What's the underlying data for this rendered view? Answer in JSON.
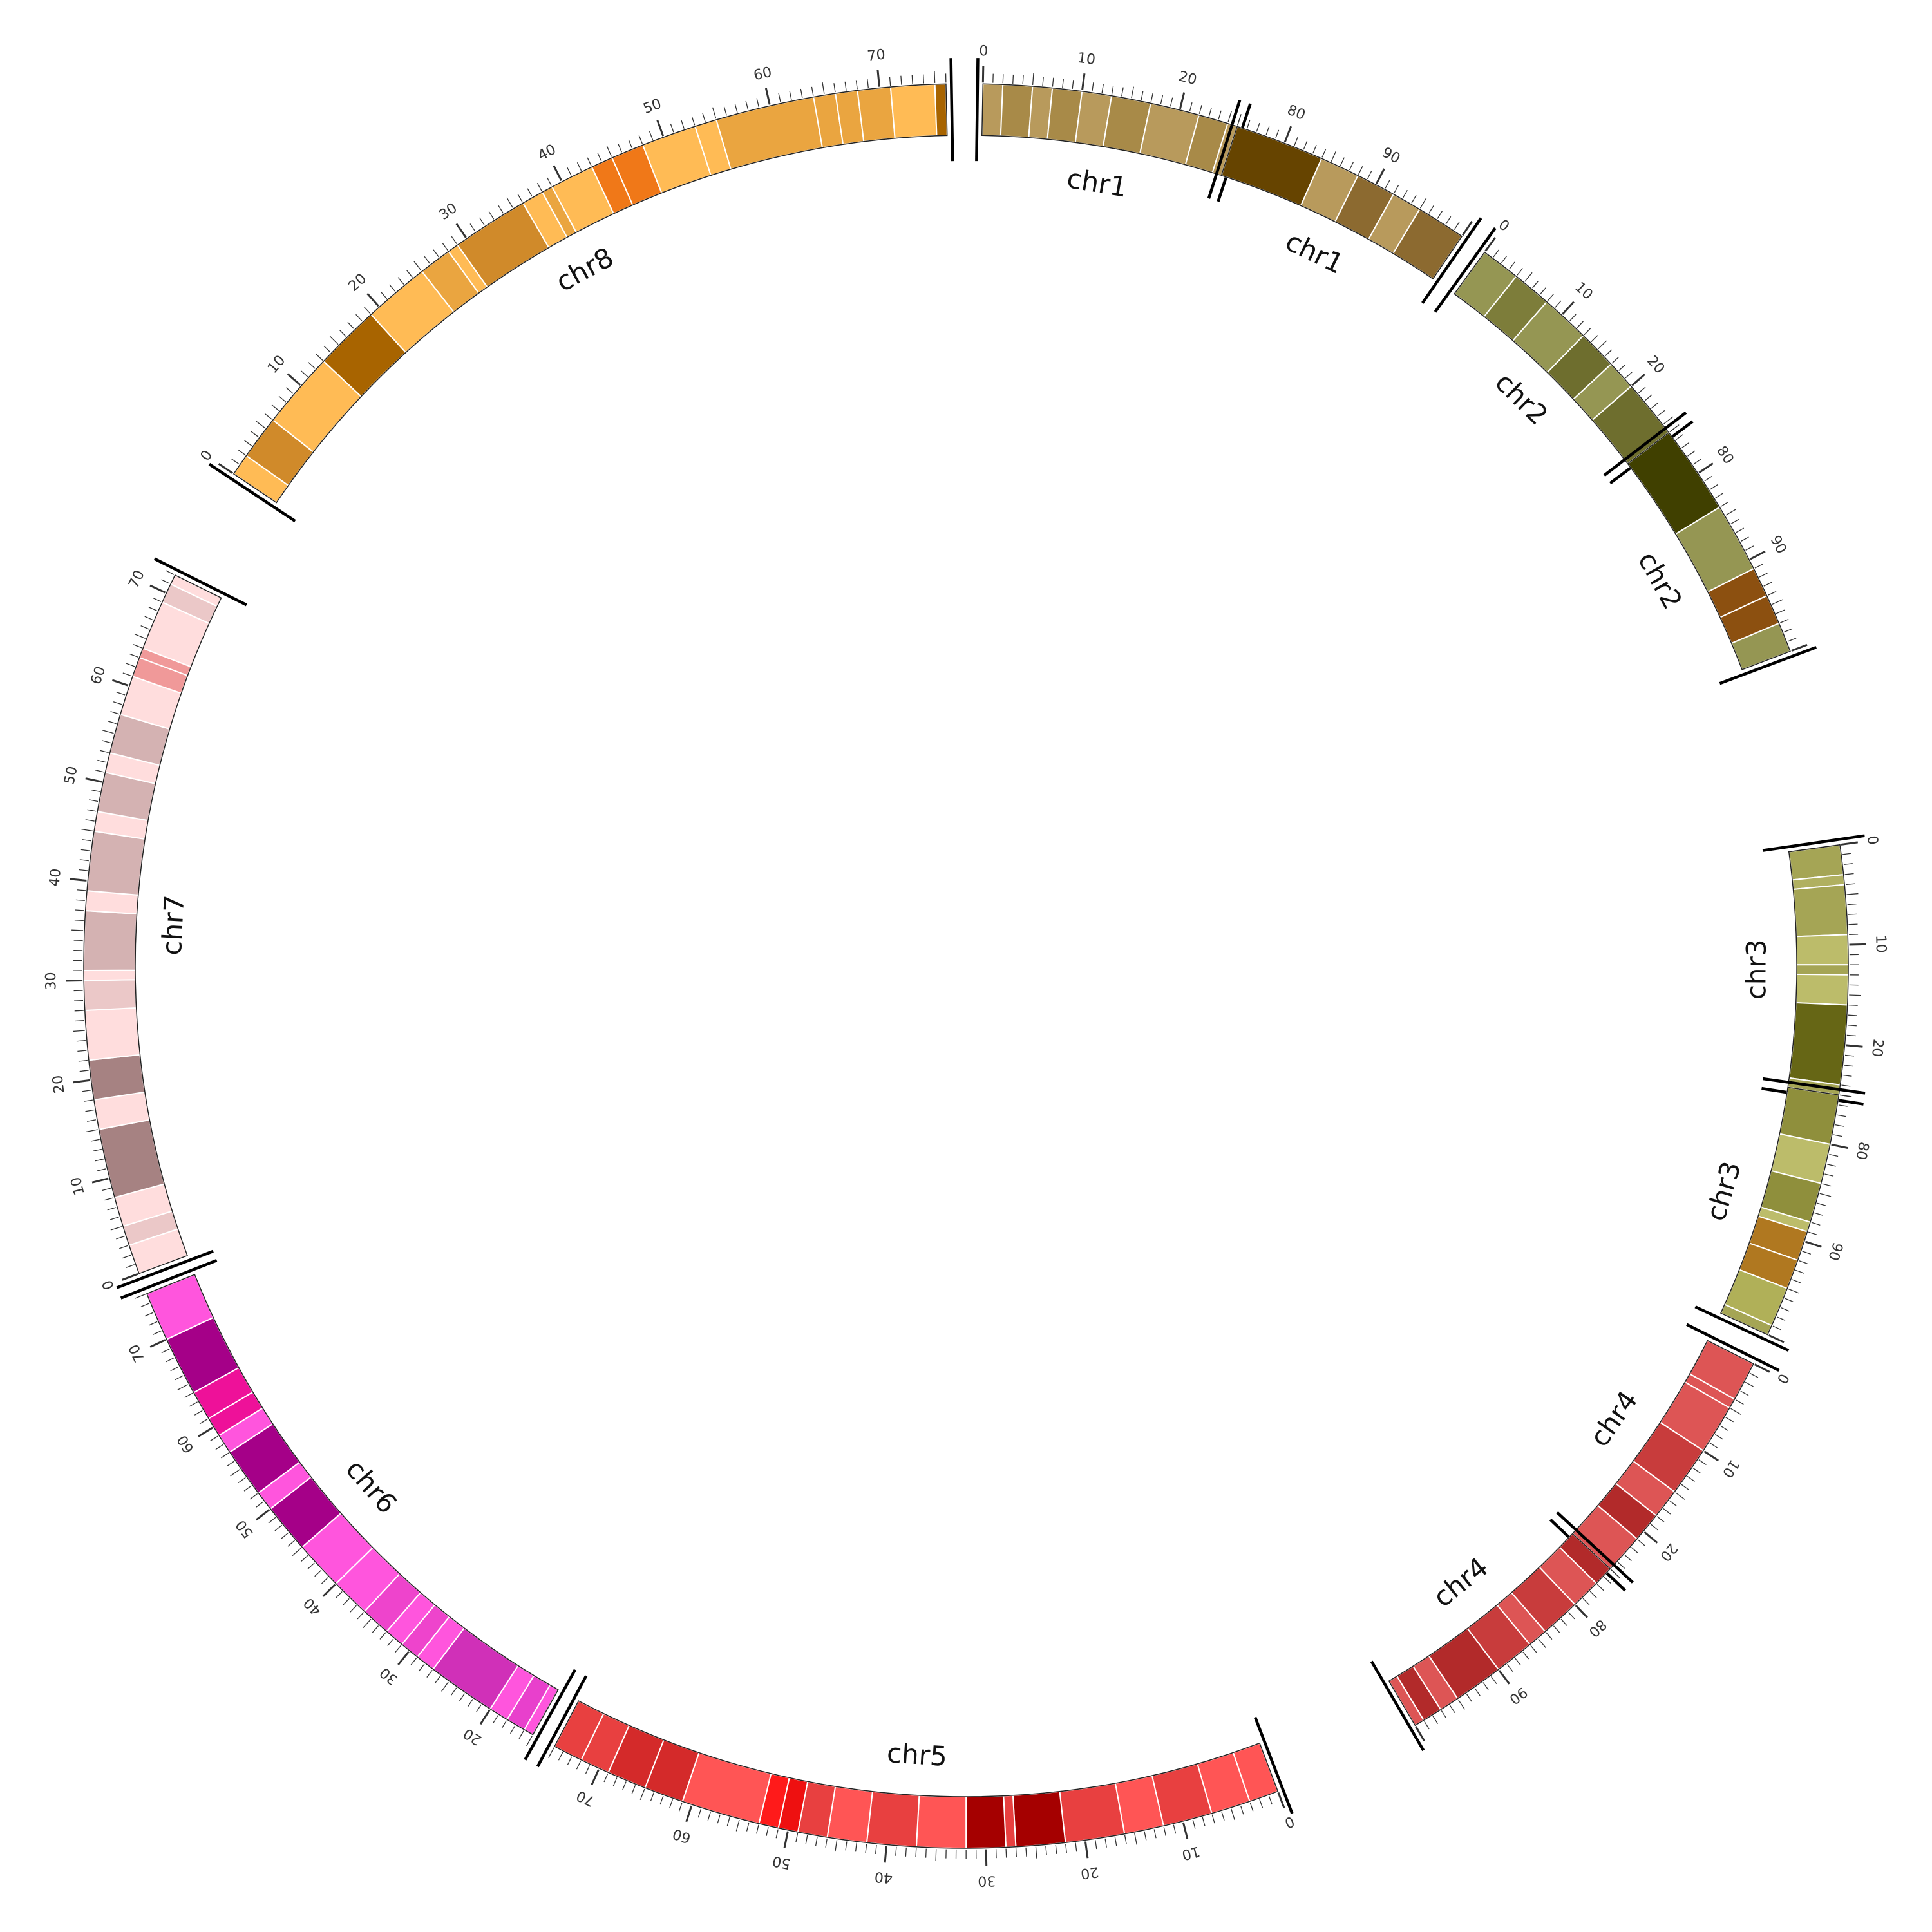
{
  "diagram": {
    "type": "circos-ideogram",
    "segments": [
      {
        "label": "chr1",
        "start": 0,
        "end": 26,
        "ticks": [
          0,
          10,
          20
        ],
        "bands": [
          [
            0,
            2,
            "#b89a5c"
          ],
          [
            2,
            5,
            "#a88a48"
          ],
          [
            5,
            7,
            "#b89a5c"
          ],
          [
            7,
            10,
            "#a88a48"
          ],
          [
            10,
            13,
            "#b89a5c"
          ],
          [
            13,
            17,
            "#a88a48"
          ],
          [
            17,
            22,
            "#b89a5c"
          ],
          [
            22,
            25,
            "#a88a48"
          ],
          [
            25,
            26,
            "#b89a5c"
          ]
        ]
      },
      {
        "label": "chr1",
        "start": 75,
        "end": 100,
        "ticks": [
          80,
          90
        ],
        "bands": [
          [
            75,
            84,
            "#664400"
          ],
          [
            84,
            88,
            "#b89a5c"
          ],
          [
            88,
            92,
            "#8c6a30"
          ],
          [
            92,
            95,
            "#b89a5c"
          ],
          [
            95,
            100,
            "#8c6a30"
          ]
        ]
      },
      {
        "label": "chr2",
        "start": 0,
        "end": 26,
        "ticks": [
          0,
          10,
          20
        ],
        "bands": [
          [
            0,
            4,
            "#959653"
          ],
          [
            4,
            8,
            "#7d7d3a"
          ],
          [
            8,
            13,
            "#959653"
          ],
          [
            13,
            17,
            "#6e6e2e"
          ],
          [
            17,
            20,
            "#959653"
          ],
          [
            20,
            26,
            "#6e6e2e"
          ]
        ]
      },
      {
        "label": "chr2",
        "start": 75,
        "end": 100,
        "ticks": [
          80,
          90
        ],
        "bands": [
          [
            75,
            84,
            "#404000"
          ],
          [
            84,
            91,
            "#959653"
          ],
          [
            91,
            94,
            "#8c5010"
          ],
          [
            94,
            97,
            "#8c5010"
          ],
          [
            97,
            100,
            "#959653"
          ]
        ]
      },
      {
        "label": "chr3",
        "start": 0,
        "end": 25,
        "ticks": [
          0,
          10,
          20
        ],
        "bands": [
          [
            0,
            3,
            "#a5a555"
          ],
          [
            3,
            4,
            "#b0b060"
          ],
          [
            4,
            9,
            "#a5a555"
          ],
          [
            9,
            12,
            "#bcbc6a"
          ],
          [
            12,
            13,
            "#a5a555"
          ],
          [
            13,
            16,
            "#bcbc6a"
          ],
          [
            16,
            24,
            "#666615"
          ],
          [
            24,
            25,
            "#a5a555"
          ]
        ]
      },
      {
        "label": "chr3",
        "start": 75,
        "end": 100,
        "ticks": [
          80,
          90
        ],
        "bands": [
          [
            75,
            80,
            "#8f8f3c"
          ],
          [
            80,
            84,
            "#bcbc6a"
          ],
          [
            84,
            88,
            "#8f8f3c"
          ],
          [
            88,
            89,
            "#bcbc6a"
          ],
          [
            89,
            92,
            "#b07820"
          ],
          [
            92,
            95,
            "#b07820"
          ],
          [
            95,
            99,
            "#b0b058"
          ],
          [
            99,
            100,
            "#a5a555"
          ]
        ]
      },
      {
        "label": "chr4",
        "start": 0,
        "end": 25,
        "ticks": [
          0,
          10,
          20
        ],
        "bands": [
          [
            0,
            4,
            "#dd5555"
          ],
          [
            4,
            5,
            "#dd5555"
          ],
          [
            5,
            10,
            "#dd5555"
          ],
          [
            10,
            15,
            "#c83c3c"
          ],
          [
            15,
            18,
            "#dd5555"
          ],
          [
            18,
            21,
            "#b22a2a"
          ],
          [
            21,
            25,
            "#dd5555"
          ]
        ]
      },
      {
        "label": "chr4",
        "start": 75,
        "end": 100,
        "ticks": [
          80,
          90
        ],
        "bands": [
          [
            75,
            77,
            "#b22a2a"
          ],
          [
            77,
            80,
            "#dd5555"
          ],
          [
            80,
            84,
            "#c83c3c"
          ],
          [
            84,
            86,
            "#dd5555"
          ],
          [
            86,
            90,
            "#c83c3c"
          ],
          [
            90,
            95,
            "#b22a2a"
          ],
          [
            95,
            97,
            "#dd5555"
          ],
          [
            97,
            99,
            "#b22a2a"
          ],
          [
            99,
            100,
            "#dd5555"
          ]
        ]
      },
      {
        "label": "chr5",
        "start": 0,
        "end": 75,
        "ticks": [
          0,
          10,
          20,
          30,
          40,
          50,
          60,
          70
        ],
        "bands": [
          [
            0,
            3,
            "#ff5555"
          ],
          [
            3,
            7,
            "#ff5555"
          ],
          [
            7,
            12,
            "#e84040"
          ],
          [
            12,
            16,
            "#ff5555"
          ],
          [
            16,
            22,
            "#e84040"
          ],
          [
            22,
            27,
            "#a50000"
          ],
          [
            27,
            28,
            "#e84040"
          ],
          [
            28,
            32,
            "#a50000"
          ],
          [
            32,
            37,
            "#ff5555"
          ],
          [
            37,
            42,
            "#e84040"
          ],
          [
            42,
            46,
            "#ff5555"
          ],
          [
            46,
            49,
            "#e84040"
          ],
          [
            49,
            51,
            "#ee1010"
          ],
          [
            51,
            53,
            "#ff1a1a"
          ],
          [
            53,
            61,
            "#ff5555"
          ],
          [
            61,
            65,
            "#d42a2a"
          ],
          [
            65,
            69,
            "#d42a2a"
          ],
          [
            69,
            72,
            "#e84040"
          ],
          [
            72,
            75,
            "#e84040"
          ]
        ]
      },
      {
        "label": "chr6",
        "start": 15,
        "end": 75,
        "ticks": [
          20,
          30,
          40,
          50,
          60,
          70
        ],
        "bands": [
          [
            15,
            16,
            "#ff55dd"
          ],
          [
            16,
            18,
            "#e840cc"
          ],
          [
            18,
            20,
            "#ff55dd"
          ],
          [
            20,
            27,
            "#d030b8"
          ],
          [
            27,
            29,
            "#ff55dd"
          ],
          [
            29,
            31,
            "#ee44cc"
          ],
          [
            31,
            33,
            "#ff55dd"
          ],
          [
            33,
            36,
            "#ee44cc"
          ],
          [
            36,
            40,
            "#ff55dd"
          ],
          [
            40,
            45,
            "#ff55dd"
          ],
          [
            45,
            50,
            "#a50088"
          ],
          [
            50,
            52,
            "#ff55dd"
          ],
          [
            52,
            57,
            "#a50088"
          ],
          [
            57,
            59,
            "#ff55dd"
          ],
          [
            59,
            61,
            "#ee1199"
          ],
          [
            61,
            64,
            "#ee1199"
          ],
          [
            64,
            70,
            "#a50088"
          ],
          [
            70,
            75,
            "#ff55dd"
          ]
        ]
      },
      {
        "label": "chr7",
        "start": 0,
        "end": 72,
        "ticks": [
          0,
          10,
          20,
          30,
          40,
          50,
          60,
          70
        ],
        "bands": [
          [
            0,
            3,
            "#ffdddd"
          ],
          [
            3,
            5,
            "#ebc8c8"
          ],
          [
            5,
            8,
            "#ffdddd"
          ],
          [
            8,
            15,
            "#a68282"
          ],
          [
            15,
            18,
            "#ffdddd"
          ],
          [
            18,
            22,
            "#a68282"
          ],
          [
            22,
            27,
            "#ffdddd"
          ],
          [
            27,
            30,
            "#ebc8c8"
          ],
          [
            30,
            31,
            "#ffdddd"
          ],
          [
            31,
            37,
            "#d4b2b2"
          ],
          [
            37,
            39,
            "#ffdddd"
          ],
          [
            39,
            45,
            "#d4b2b2"
          ],
          [
            45,
            47,
            "#ffdddd"
          ],
          [
            47,
            51,
            "#d4b2b2"
          ],
          [
            51,
            53,
            "#ffdddd"
          ],
          [
            53,
            57,
            "#d4b2b2"
          ],
          [
            57,
            61,
            "#ffdddd"
          ],
          [
            61,
            63,
            "#f09999"
          ],
          [
            63,
            64,
            "#f09999"
          ],
          [
            64,
            69,
            "#ffdddd"
          ],
          [
            69,
            71,
            "#ebc8c8"
          ],
          [
            71,
            72,
            "#ffdddd"
          ]
        ]
      },
      {
        "label": "chr8",
        "start": 0,
        "end": 76,
        "ticks": [
          0,
          10,
          20,
          30,
          40,
          50,
          60,
          70
        ],
        "bands": [
          [
            0,
            2,
            "#ffbb55"
          ],
          [
            2,
            6,
            "#d08a2a"
          ],
          [
            6,
            13,
            "#ffbb55"
          ],
          [
            13,
            19,
            "#a86400"
          ],
          [
            19,
            25,
            "#ffbb55"
          ],
          [
            25,
            28,
            "#eaa540"
          ],
          [
            28,
            29,
            "#ffbb55"
          ],
          [
            29,
            36,
            "#d08a2a"
          ],
          [
            36,
            38,
            "#ffbb55"
          ],
          [
            38,
            39,
            "#eaa540"
          ],
          [
            39,
            43,
            "#ffbb55"
          ],
          [
            43,
            45,
            "#f07818"
          ],
          [
            45,
            48,
            "#f07818"
          ],
          [
            48,
            53,
            "#ffbb55"
          ],
          [
            53,
            55,
            "#ffbb55"
          ],
          [
            55,
            64,
            "#eaa540"
          ],
          [
            64,
            66,
            "#eaa540"
          ],
          [
            66,
            68,
            "#eaa540"
          ],
          [
            68,
            71,
            "#eaa540"
          ],
          [
            71,
            75,
            "#ffbb55"
          ],
          [
            75,
            76,
            "#a86400"
          ]
        ]
      }
    ]
  }
}
